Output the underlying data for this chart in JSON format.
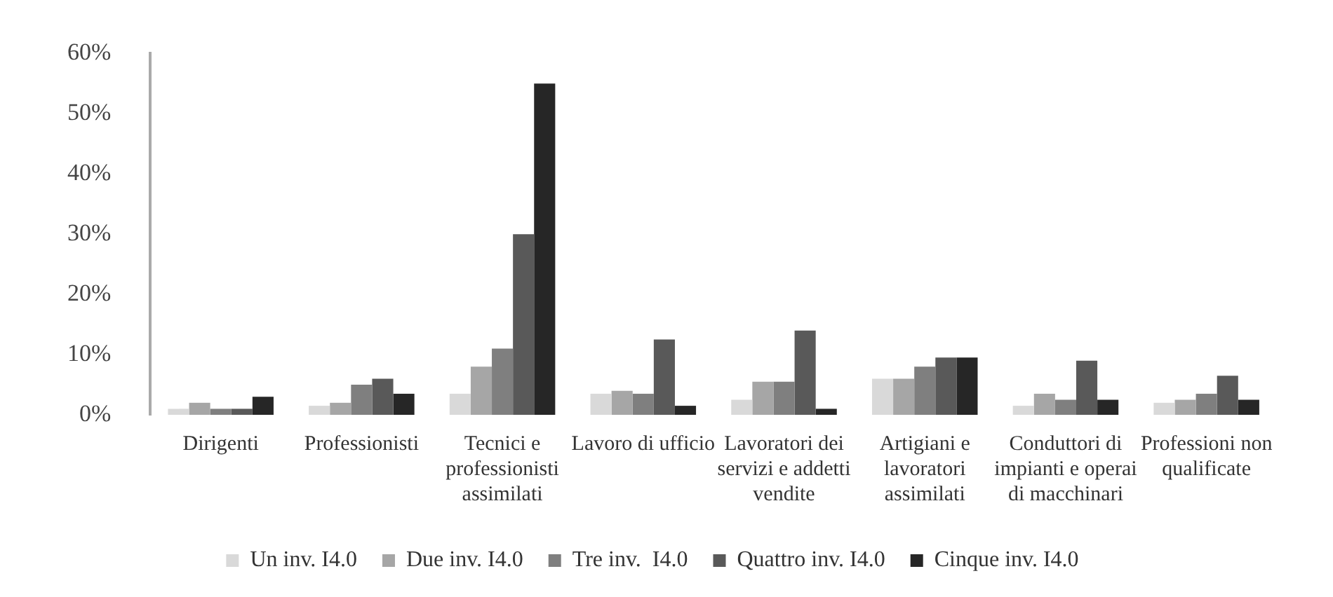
{
  "chart_data": {
    "type": "bar",
    "categories": [
      "Dirigenti",
      "Professionisti",
      "Tecnici e professionisti assimilati",
      "Lavoro di ufficio",
      "Lavoratori dei servizi e addetti vendite",
      "Artigiani e lavoratori assimilati",
      "Conduttori di impianti e operai di macchinari",
      "Professioni non qualificate"
    ],
    "series": [
      {
        "name": "Un inv. I4.0",
        "color": "#d9d9d9",
        "values": [
          1,
          1.5,
          3.5,
          3.5,
          2.5,
          6,
          1.5,
          2
        ]
      },
      {
        "name": "Due inv. I4.0",
        "color": "#a6a6a6",
        "values": [
          2,
          2,
          8,
          4,
          5.5,
          6,
          3.5,
          2.5
        ]
      },
      {
        "name": "Tre inv.  I4.0",
        "color": "#7f7f7f",
        "values": [
          1,
          5,
          11,
          3.5,
          5.5,
          8,
          2.5,
          3.5
        ]
      },
      {
        "name": "Quattro inv. I4.0",
        "color": "#595959",
        "values": [
          1,
          6,
          30,
          12.5,
          14,
          9.5,
          9,
          6.5
        ]
      },
      {
        "name": "Cinque inv. I4.0",
        "color": "#262626",
        "values": [
          3,
          3.5,
          55,
          1.5,
          1,
          9.5,
          2.5,
          2.5
        ]
      }
    ],
    "ylim": [
      0,
      60
    ],
    "yticks": [
      {
        "value": 0,
        "label": "0%"
      },
      {
        "value": 10,
        "label": "10%"
      },
      {
        "value": 20,
        "label": "20%"
      },
      {
        "value": 30,
        "label": "30%"
      },
      {
        "value": 40,
        "label": "40%"
      },
      {
        "value": 50,
        "label": "50%"
      },
      {
        "value": 60,
        "label": "60%"
      }
    ],
    "grid": false,
    "legend": "bottom"
  }
}
